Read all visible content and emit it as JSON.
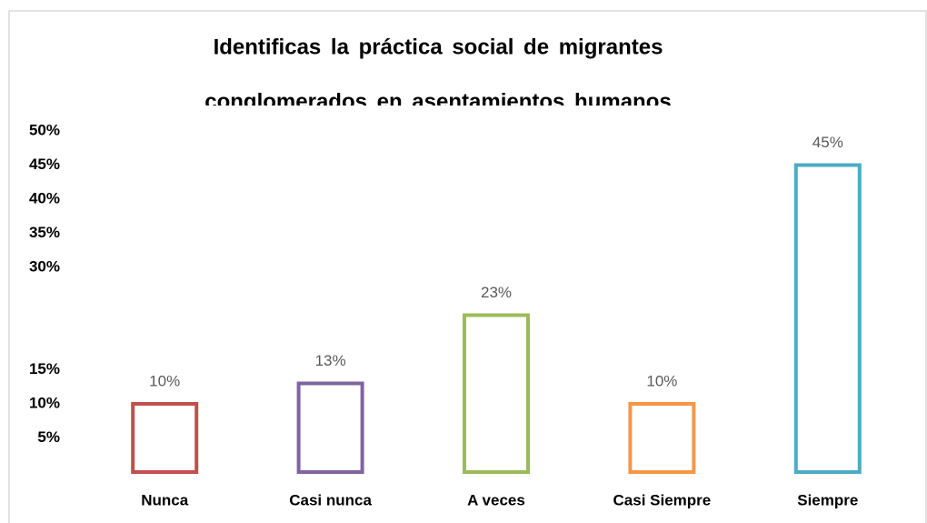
{
  "chart_data": {
    "type": "bar",
    "title": [
      "Identificas la práctica social de migrantes",
      "conglomerados en asentamientos humanos"
    ],
    "categories": [
      "Nunca",
      "Casi nunca",
      "A veces",
      "Casi Siempre",
      "Siempre"
    ],
    "values": [
      10,
      13,
      23,
      10,
      45
    ],
    "value_labels": [
      "10%",
      "13%",
      "23%",
      "10%",
      "45%"
    ],
    "colors": [
      "#c0504d",
      "#8064a2",
      "#9bbb59",
      "#f79646",
      "#4bacc6"
    ],
    "ylim": [
      0,
      50
    ],
    "yticks": [
      {
        "value": 5,
        "label": "5%"
      },
      {
        "value": 10,
        "label": "10%"
      },
      {
        "value": 15,
        "label": "15%"
      },
      {
        "value": 30,
        "label": "30%"
      },
      {
        "value": 35,
        "label": "35%"
      },
      {
        "value": 40,
        "label": "40%"
      },
      {
        "value": 45,
        "label": "45%"
      },
      {
        "value": 50,
        "label": "50%"
      }
    ],
    "grid": false
  }
}
